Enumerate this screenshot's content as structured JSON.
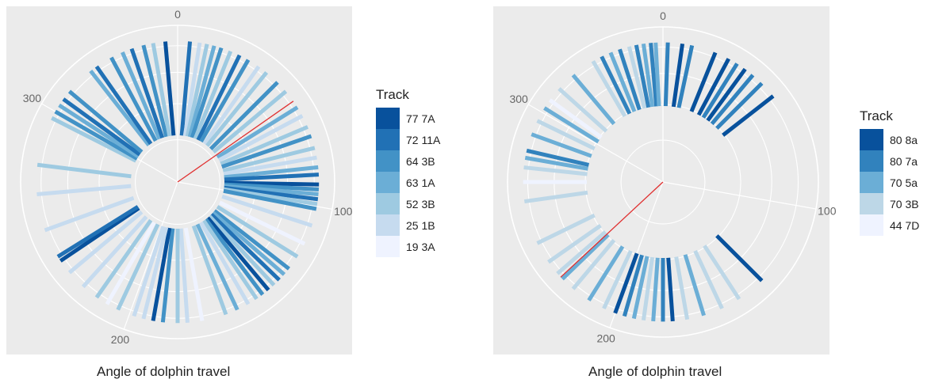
{
  "chart_data": [
    {
      "type": "polar-bar",
      "xlabel": "Angle of dolphin travel",
      "theta_ticks": [
        "0",
        "100",
        "200",
        "300"
      ],
      "axis_range": [
        0,
        360
      ],
      "legend": {
        "title": "Track",
        "placement": "right",
        "entries": [
          {
            "label": "77 7A",
            "color": "#08519c"
          },
          {
            "label": "72 11A",
            "color": "#2171b5"
          },
          {
            "label": "64 3B",
            "color": "#4292c6"
          },
          {
            "label": "63 1A",
            "color": "#6baed6"
          },
          {
            "label": "52 3B",
            "color": "#9ecae1"
          },
          {
            "label": "25 1B",
            "color": "#c6dbef"
          },
          {
            "label": "19 3A",
            "color": "#eff3ff"
          }
        ]
      },
      "highlight_angle": 55,
      "highlight_color": "#e03030",
      "bars": [
        {
          "angle": 5,
          "track": 1
        },
        {
          "angle": 9,
          "track": 5
        },
        {
          "angle": 12,
          "track": 4
        },
        {
          "angle": 15,
          "track": 3
        },
        {
          "angle": 18,
          "track": 2
        },
        {
          "angle": 22,
          "track": 4
        },
        {
          "angle": 26,
          "track": 1
        },
        {
          "angle": 30,
          "track": 2
        },
        {
          "angle": 35,
          "track": 5
        },
        {
          "angle": 39,
          "track": 4
        },
        {
          "angle": 45,
          "track": 2
        },
        {
          "angle": 50,
          "track": 4
        },
        {
          "angle": 58,
          "track": 3
        },
        {
          "angle": 62,
          "track": 5
        },
        {
          "angle": 67,
          "track": 4
        },
        {
          "angle": 71,
          "track": 2
        },
        {
          "angle": 76,
          "track": 4
        },
        {
          "angle": 80,
          "track": 5
        },
        {
          "angle": 84,
          "track": 3
        },
        {
          "angle": 87,
          "track": 1
        },
        {
          "angle": 91,
          "track": 0
        },
        {
          "angle": 93,
          "track": 2
        },
        {
          "angle": 95,
          "track": 3
        },
        {
          "angle": 97,
          "track": 1
        },
        {
          "angle": 99,
          "track": 4
        },
        {
          "angle": 101,
          "track": 2
        },
        {
          "angle": 108,
          "track": 5
        },
        {
          "angle": 116,
          "track": 6
        },
        {
          "angle": 122,
          "track": 4
        },
        {
          "angle": 128,
          "track": 2
        },
        {
          "angle": 131,
          "track": 3
        },
        {
          "angle": 134,
          "track": 1
        },
        {
          "angle": 137,
          "track": 4
        },
        {
          "angle": 140,
          "track": 0
        },
        {
          "angle": 143,
          "track": 2
        },
        {
          "angle": 146,
          "track": 4
        },
        {
          "angle": 150,
          "track": 5
        },
        {
          "angle": 155,
          "track": 3
        },
        {
          "angle": 160,
          "track": 4
        },
        {
          "angle": 170,
          "track": 6
        },
        {
          "angle": 176,
          "track": 5
        },
        {
          "angle": 180,
          "track": 4
        },
        {
          "angle": 186,
          "track": 2
        },
        {
          "angle": 190,
          "track": 0
        },
        {
          "angle": 194,
          "track": 5
        },
        {
          "angle": 198,
          "track": 5
        },
        {
          "angle": 205,
          "track": 4
        },
        {
          "angle": 210,
          "track": 6
        },
        {
          "angle": 215,
          "track": 4
        },
        {
          "angle": 222,
          "track": 5
        },
        {
          "angle": 230,
          "track": 5
        },
        {
          "angle": 236,
          "track": 0
        },
        {
          "angle": 238,
          "track": 1
        },
        {
          "angle": 250,
          "track": 5
        },
        {
          "angle": 265,
          "track": 5
        },
        {
          "angle": 277,
          "track": 4
        },
        {
          "angle": 297,
          "track": 4
        },
        {
          "angle": 300,
          "track": 2
        },
        {
          "angle": 303,
          "track": 3
        },
        {
          "angle": 306,
          "track": 1
        },
        {
          "angle": 310,
          "track": 2
        },
        {
          "angle": 322,
          "track": 3
        },
        {
          "angle": 325,
          "track": 1
        },
        {
          "angle": 332,
          "track": 2
        },
        {
          "angle": 337,
          "track": 3
        },
        {
          "angle": 341,
          "track": 1
        },
        {
          "angle": 346,
          "track": 2
        },
        {
          "angle": 350,
          "track": 4
        },
        {
          "angle": 355,
          "track": 0
        }
      ]
    },
    {
      "type": "polar-bar",
      "xlabel": "Angle of dolphin travel",
      "theta_ticks": [
        "0",
        "100",
        "200",
        "300"
      ],
      "axis_range": [
        0,
        360
      ],
      "legend": {
        "title": "Track",
        "placement": "right",
        "entries": [
          {
            "label": "80 8a",
            "color": "#08519c"
          },
          {
            "label": "80 7a",
            "color": "#3182bd"
          },
          {
            "label": "70 5a",
            "color": "#6baed6"
          },
          {
            "label": "70 3B",
            "color": "#bdd7e7"
          },
          {
            "label": "44 7D",
            "color": "#eff3ff"
          }
        ]
      },
      "highlight_angle": 227,
      "highlight_color": "#e03030",
      "bars": [
        {
          "angle": 352,
          "track": 2
        },
        {
          "angle": 355,
          "track": 1
        },
        {
          "angle": 357,
          "track": 2
        },
        {
          "angle": 2,
          "track": 1
        },
        {
          "angle": 8,
          "track": 0
        },
        {
          "angle": 12,
          "track": 1
        },
        {
          "angle": 22,
          "track": 0
        },
        {
          "angle": 28,
          "track": 0
        },
        {
          "angle": 32,
          "track": 1
        },
        {
          "angle": 36,
          "track": 0
        },
        {
          "angle": 40,
          "track": 1
        },
        {
          "angle": 45,
          "track": 1
        },
        {
          "angle": 52,
          "track": 0
        },
        {
          "angle": 135,
          "track": 0
        },
        {
          "angle": 147,
          "track": 3
        },
        {
          "angle": 155,
          "track": 3
        },
        {
          "angle": 163,
          "track": 2
        },
        {
          "angle": 170,
          "track": 3
        },
        {
          "angle": 176,
          "track": 0
        },
        {
          "angle": 180,
          "track": 1
        },
        {
          "angle": 184,
          "track": 2
        },
        {
          "angle": 188,
          "track": 3
        },
        {
          "angle": 192,
          "track": 2
        },
        {
          "angle": 196,
          "track": 1
        },
        {
          "angle": 200,
          "track": 0
        },
        {
          "angle": 205,
          "track": 3
        },
        {
          "angle": 212,
          "track": 2
        },
        {
          "angle": 220,
          "track": 3
        },
        {
          "angle": 226,
          "track": 2
        },
        {
          "angle": 229,
          "track": 3
        },
        {
          "angle": 235,
          "track": 3
        },
        {
          "angle": 244,
          "track": 3
        },
        {
          "angle": 262,
          "track": 3
        },
        {
          "angle": 270,
          "track": 4
        },
        {
          "angle": 276,
          "track": 3
        },
        {
          "angle": 280,
          "track": 2
        },
        {
          "angle": 283,
          "track": 1
        },
        {
          "angle": 290,
          "track": 2
        },
        {
          "angle": 296,
          "track": 3
        },
        {
          "angle": 302,
          "track": 2
        },
        {
          "angle": 306,
          "track": 4
        },
        {
          "angle": 312,
          "track": 3
        },
        {
          "angle": 320,
          "track": 2
        },
        {
          "angle": 330,
          "track": 3
        },
        {
          "angle": 334,
          "track": 1
        },
        {
          "angle": 338,
          "track": 2
        },
        {
          "angle": 342,
          "track": 1
        },
        {
          "angle": 346,
          "track": 3
        },
        {
          "angle": 349,
          "track": 1
        }
      ]
    }
  ]
}
